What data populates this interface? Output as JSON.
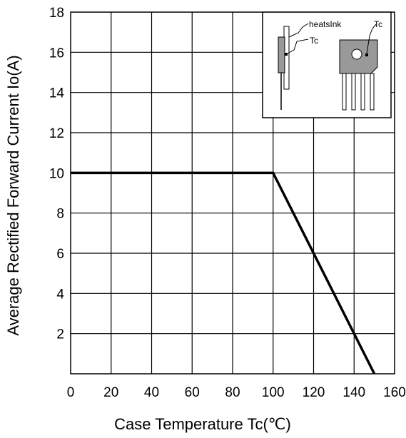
{
  "chart_data": {
    "type": "line",
    "xlabel": "Case Temperature Tc(℃)",
    "ylabel": "Average Rectified Forward Current Io(A)",
    "xlim": [
      0,
      160
    ],
    "ylim": [
      0,
      18
    ],
    "x_ticks": [
      "0",
      "20",
      "40",
      "60",
      "80",
      "100",
      "120",
      "140",
      "160"
    ],
    "y_ticks": [
      "2",
      "4",
      "6",
      "8",
      "10",
      "12",
      "14",
      "16",
      "18"
    ],
    "grid": true,
    "series": [
      {
        "x": [
          0,
          100,
          150
        ],
        "y": [
          10,
          10,
          0
        ]
      }
    ],
    "inset": {
      "labels": {
        "heatsink": "heatsInk",
        "tc_left": "Tc",
        "tc_right": "Tc"
      }
    }
  }
}
